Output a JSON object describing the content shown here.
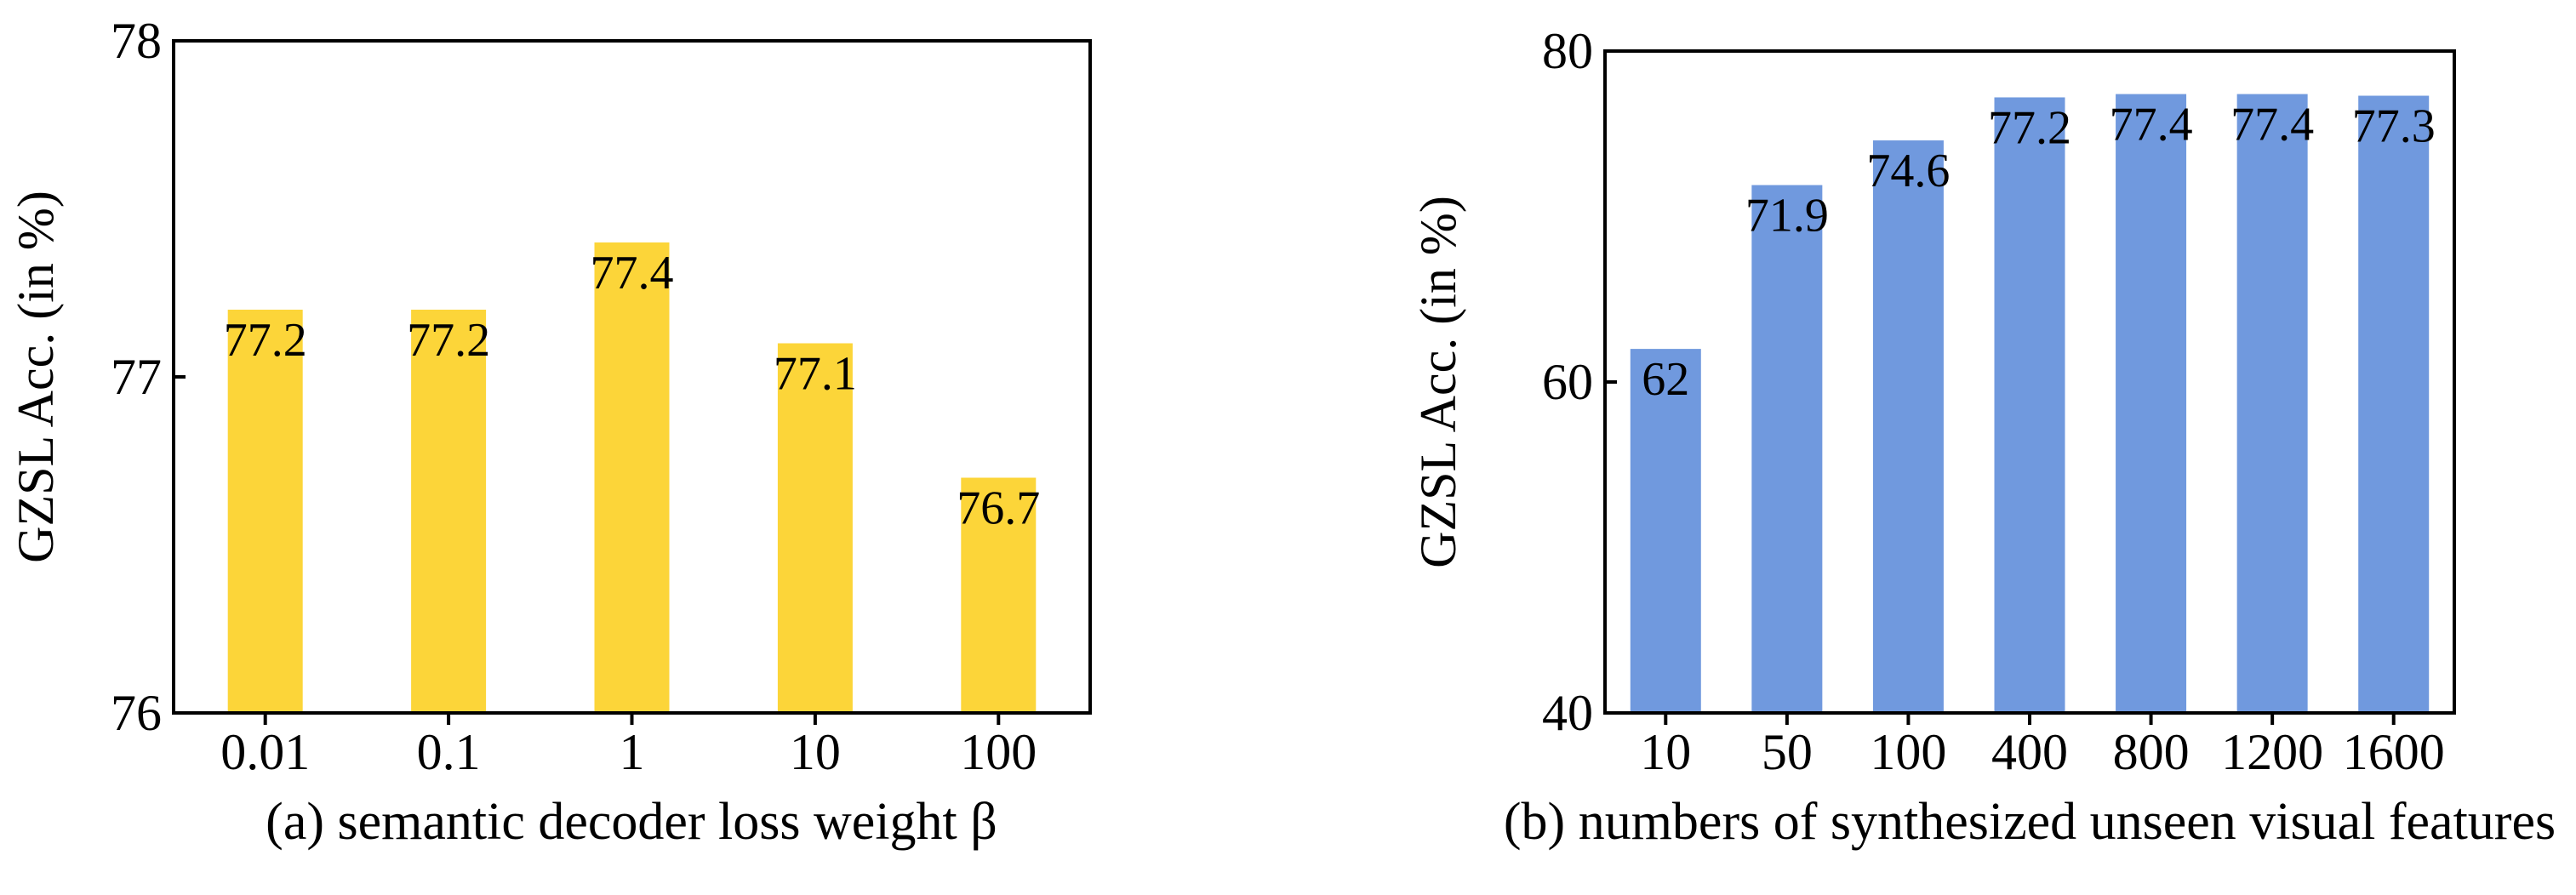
{
  "chart_data": [
    {
      "type": "bar",
      "categories": [
        "0.01",
        "0.1",
        "1",
        "10",
        "100"
      ],
      "values": [
        77.2,
        77.2,
        77.4,
        77.1,
        76.7
      ],
      "value_labels": [
        "77.2",
        "77.2",
        "77.4",
        "77.1",
        "76.7"
      ],
      "ylim": [
        76,
        78
      ],
      "yticks": [
        76,
        77,
        78
      ],
      "ytick_labels": [
        "76",
        "77",
        "78"
      ],
      "ylabel": "GZSL Acc. (in %)",
      "xlabel": "",
      "caption": "(a) semantic decoder loss weight β",
      "color": "#FCD539",
      "grid": false
    },
    {
      "type": "bar",
      "categories": [
        "10",
        "50",
        "100",
        "400",
        "800",
        "1200",
        "1600"
      ],
      "values": [
        62,
        71.9,
        74.6,
        77.2,
        77.4,
        77.4,
        77.3
      ],
      "value_labels": [
        "62",
        "71.9",
        "74.6",
        "77.2",
        "77.4",
        "77.4",
        "77.3"
      ],
      "ylim": [
        40,
        80
      ],
      "yticks": [
        40,
        60,
        80
      ],
      "ytick_labels": [
        "40",
        "60",
        "80"
      ],
      "ylabel": "GZSL Acc. (in %)",
      "xlabel": "",
      "caption": "(b) numbers of synthesized unseen visual features",
      "color": "#7099DE",
      "grid": false
    }
  ]
}
